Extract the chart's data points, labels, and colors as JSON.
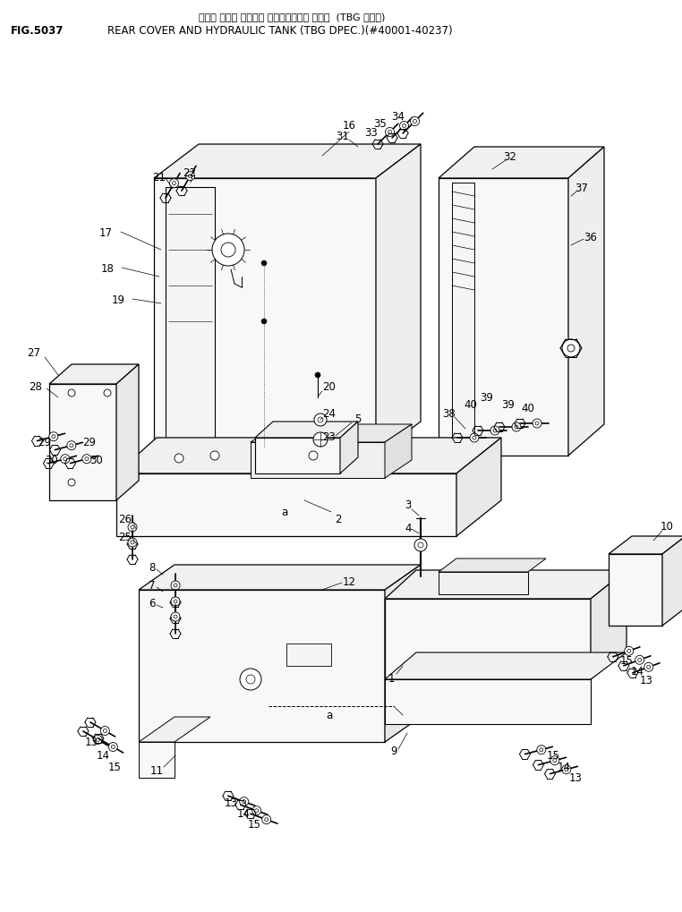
{
  "title_japanese": "リヤー カバー オヤビ・ ハイドロリック タンク  (TBG ショウ)",
  "title_english": "REAR COVER AND HYDRAULIC TANK (TBG DPEC.)(#40001-40237)",
  "fig_number": "FIG.5037",
  "bg_color": "#ffffff",
  "line_color": "#000000",
  "text_color": "#000000"
}
